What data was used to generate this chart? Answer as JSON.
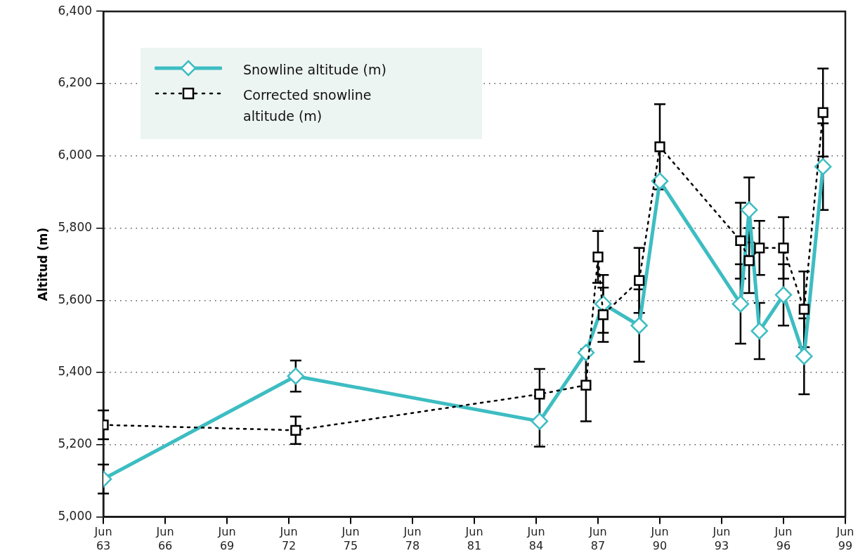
{
  "chart_data": {
    "type": "line",
    "ylabel": "Altitud (m)",
    "xlim": [
      "1963-06",
      "1999-06"
    ],
    "xticks": [
      {
        "value": "1963-06",
        "label": "Jun\n63"
      },
      {
        "value": "1966-06",
        "label": "Jun\n66"
      },
      {
        "value": "1969-06",
        "label": "Jun\n69"
      },
      {
        "value": "1972-06",
        "label": "Jun\n72"
      },
      {
        "value": "1975-06",
        "label": "Jun\n75"
      },
      {
        "value": "1978-06",
        "label": "Jun\n78"
      },
      {
        "value": "1981-06",
        "label": "Jun\n81"
      },
      {
        "value": "1984-06",
        "label": "Jun\n84"
      },
      {
        "value": "1987-06",
        "label": "Jun\n87"
      },
      {
        "value": "1990-06",
        "label": "Jun\n90"
      },
      {
        "value": "1993-06",
        "label": "Jun\n93"
      },
      {
        "value": "1996-06",
        "label": "Jun\n96"
      },
      {
        "value": "1999-06",
        "label": "Jun\n99"
      }
    ],
    "ylim": [
      5000,
      6400
    ],
    "yticks": [
      {
        "value": 5000,
        "label": "5,000"
      },
      {
        "value": 5200,
        "label": "5,200"
      },
      {
        "value": 5400,
        "label": "5,400"
      },
      {
        "value": 5600,
        "label": "5,600"
      },
      {
        "value": 5800,
        "label": "5,800"
      },
      {
        "value": 6000,
        "label": "6,000"
      },
      {
        "value": 6200,
        "label": "6,200"
      },
      {
        "value": 6400,
        "label": "6,400"
      }
    ],
    "grid": "y",
    "legend": "top left",
    "series": [
      {
        "name": "Snowline altitude (m)",
        "color": "#3dbdc2",
        "marker": "diamond",
        "line_style": "solid",
        "x": [
          "1963-06",
          "1972-10",
          "1984-08",
          "1986-11",
          "1987-09",
          "1989-06",
          "1990-06",
          "1994-05",
          "1994-10",
          "1995-04",
          "1996-06",
          "1997-06",
          "1998-05"
        ],
        "values": [
          5105,
          5390,
          5265,
          5455,
          5590,
          5530,
          5930,
          5590,
          5850,
          5515,
          5615,
          5445,
          5970
        ],
        "errors": [
          40,
          43,
          70,
          null,
          80,
          100,
          null,
          110,
          90,
          78,
          85,
          105,
          120
        ]
      },
      {
        "name": "Corrected snowline altitude (m)",
        "color": "#000000",
        "marker": "square",
        "line_style": "dotted",
        "x": [
          "1963-06",
          "1972-10",
          "1984-08",
          "1986-11",
          "1987-06",
          "1987-09",
          "1989-06",
          "1990-06",
          "1994-05",
          "1994-10",
          "1995-04",
          "1996-06",
          "1997-06",
          "1998-05"
        ],
        "values": [
          5255,
          5240,
          5340,
          5365,
          5720,
          5560,
          5655,
          6025,
          5765,
          5710,
          5745,
          5745,
          5575,
          6120
        ],
        "errors": [
          40,
          38,
          70,
          100,
          72,
          75,
          90,
          118,
          105,
          90,
          75,
          85,
          105,
          122
        ]
      }
    ]
  }
}
